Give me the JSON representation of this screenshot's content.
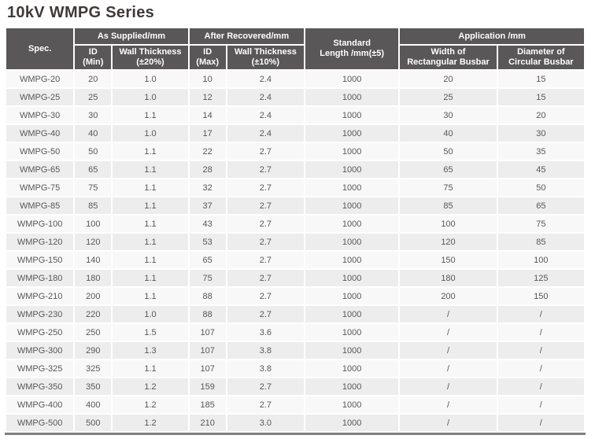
{
  "page_title": "10kV WMPG Series",
  "colors": {
    "header_bg": "#595757",
    "title_text": "#3e3a39",
    "body_text": "#595757",
    "row_odd": "#f8f8f8",
    "row_even": "#ededed",
    "table_bottom_border": "#7f7f7f"
  },
  "table": {
    "group_headers": {
      "spec": "Spec.",
      "as_supplied": "As Supplied/mm",
      "after_recovered": "After Recovered/mm",
      "standard_length": [
        "Standard",
        "Length /mm(±5)"
      ],
      "application": "Application /mm"
    },
    "sub_headers": {
      "id_min": [
        "ID",
        "(Min)"
      ],
      "wall_thickness_20": [
        "Wall Thickness",
        "(±20%)"
      ],
      "id_max": [
        "ID",
        "(Max)"
      ],
      "wall_thickness_10": [
        "Wall Thickness",
        "(±10%)"
      ],
      "width_rectangular": [
        "Width of",
        "Rectangular Busbar"
      ],
      "diameter_circular": [
        "Diameter of",
        "Circular Busbar"
      ]
    },
    "rows": [
      [
        "WMPG-20",
        "20",
        "1.0",
        "10",
        "2.4",
        "1000",
        "20",
        "15"
      ],
      [
        "WMPG-25",
        "25",
        "1.0",
        "12",
        "2.4",
        "1000",
        "25",
        "15"
      ],
      [
        "WMPG-30",
        "30",
        "1.1",
        "14",
        "2.4",
        "1000",
        "30",
        "20"
      ],
      [
        "WMPG-40",
        "40",
        "1.0",
        "17",
        "2.4",
        "1000",
        "40",
        "30"
      ],
      [
        "WMPG-50",
        "50",
        "1.1",
        "22",
        "2.7",
        "1000",
        "50",
        "35"
      ],
      [
        "WMPG-65",
        "65",
        "1.1",
        "28",
        "2.7",
        "1000",
        "65",
        "45"
      ],
      [
        "WMPG-75",
        "75",
        "1.1",
        "32",
        "2.7",
        "1000",
        "75",
        "50"
      ],
      [
        "WMPG-85",
        "85",
        "1.1",
        "37",
        "2.7",
        "1000",
        "85",
        "65"
      ],
      [
        "WMPG-100",
        "100",
        "1.1",
        "43",
        "2.7",
        "1000",
        "100",
        "75"
      ],
      [
        "WMPG-120",
        "120",
        "1.1",
        "53",
        "2.7",
        "1000",
        "120",
        "85"
      ],
      [
        "WMPG-150",
        "140",
        "1.1",
        "65",
        "2.7",
        "1000",
        "150",
        "100"
      ],
      [
        "WMPG-180",
        "180",
        "1.1",
        "75",
        "2.7",
        "1000",
        "180",
        "125"
      ],
      [
        "WMPG-210",
        "200",
        "1.1",
        "88",
        "2.7",
        "1000",
        "200",
        "150"
      ],
      [
        "WMPG-230",
        "220",
        "1.0",
        "88",
        "2.7",
        "1000",
        "/",
        "/"
      ],
      [
        "WMPG-250",
        "250",
        "1.5",
        "107",
        "3.6",
        "1000",
        "/",
        "/"
      ],
      [
        "WMPG-300",
        "290",
        "1.3",
        "107",
        "3.8",
        "1000",
        "/",
        "/"
      ],
      [
        "WMPG-325",
        "325",
        "1.1",
        "107",
        "3.8",
        "1000",
        "/",
        "/"
      ],
      [
        "WMPG-350",
        "350",
        "1.2",
        "159",
        "2.7",
        "1000",
        "/",
        "/"
      ],
      [
        "WMPG-400",
        "400",
        "1.2",
        "185",
        "2.7",
        "1000",
        "/",
        "/"
      ],
      [
        "WMPG-500",
        "500",
        "1.2",
        "210",
        "3.0",
        "1000",
        "/",
        "/"
      ]
    ]
  }
}
